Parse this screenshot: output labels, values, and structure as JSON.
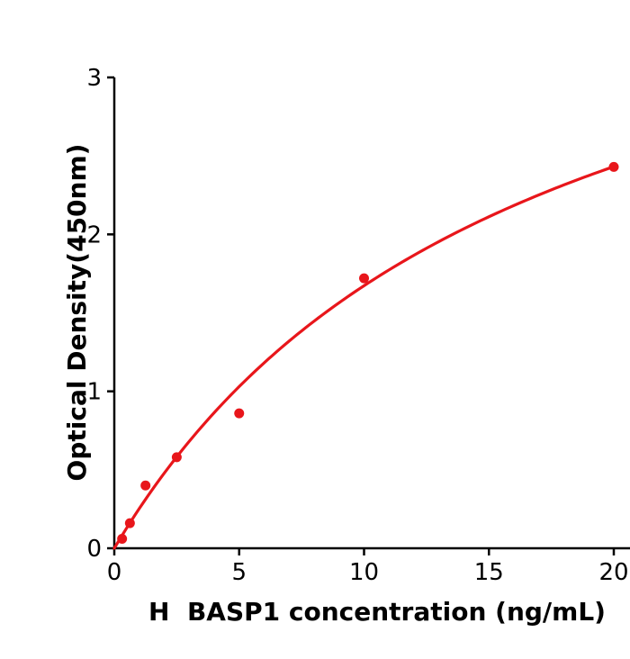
{
  "chart_data": {
    "type": "scatter",
    "title": "",
    "xlabel": "H  BASP1 concentration (ng/mL)",
    "ylabel": "Optical Density(450nm)",
    "x": [
      0.3125,
      0.625,
      1.25,
      2.5,
      5,
      10,
      20
    ],
    "y": [
      0.06,
      0.16,
      0.4,
      0.58,
      0.86,
      1.72,
      2.43
    ],
    "fit_curve": {
      "model": "michaelis-menten",
      "formula": "y = Vmax * x / (Km + x)",
      "Vmax": 4.45,
      "Km": 16.6,
      "x_range": [
        0,
        20
      ]
    },
    "x_ticks": [
      0,
      5,
      10,
      15,
      20
    ],
    "y_ticks": [
      0,
      1,
      2,
      3
    ],
    "xlim": [
      0,
      21.1
    ],
    "ylim": [
      0,
      3
    ],
    "grid": false,
    "legend": null,
    "marker_color": "#e8161b",
    "line_color": "#e8161b",
    "axis_color": "#000000",
    "background": "#ffffff"
  }
}
